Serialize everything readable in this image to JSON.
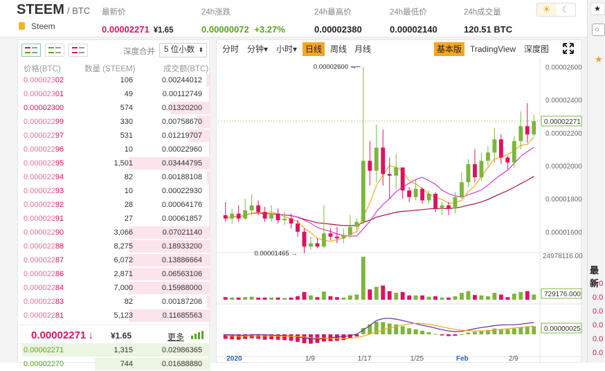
{
  "header": {
    "symbol": "STEEM",
    "pair_suffix": "/ BTC",
    "asset_name": "Steem",
    "last_price_label": "最新价",
    "last_price": "0.00002271",
    "last_price_fiat": "¥1.65",
    "change_label": "24h涨跌",
    "change_value": "0.00000072",
    "change_pct": "+3.27%",
    "high_label": "24h最高价",
    "high_value": "0.00002380",
    "low_label": "24h最低价",
    "low_value": "0.00002140",
    "volume_label": "24h成交量",
    "volume_value": "120.51 BTC",
    "theme_light_icon": "☀",
    "theme_dark_icon": "☾"
  },
  "orderbook": {
    "depth_label": "深度合并",
    "depth_select": "5 位小数",
    "columns": {
      "price": "价格(BTC)",
      "qty": "数量 (STEEM)",
      "total": "成交额(BTC)"
    },
    "asks": [
      {
        "p_main": "0.000023",
        "p_tail": "02",
        "qty": "106",
        "total": "0.00244012",
        "depth": 0.05
      },
      {
        "p_main": "0.000023",
        "p_tail": "01",
        "qty": "49",
        "total": "0.00112749",
        "depth": 0.02
      },
      {
        "p_main": "0.00002300",
        "p_tail": "",
        "qty": "574",
        "total": "0.01320200",
        "depth": 0.48
      },
      {
        "p_main": "0.000022",
        "p_tail": "99",
        "qty": "330",
        "total": "0.00758670",
        "depth": 0.16
      },
      {
        "p_main": "0.000022",
        "p_tail": "97",
        "qty": "531",
        "total": "0.01219707",
        "depth": 0.26
      },
      {
        "p_main": "0.000022",
        "p_tail": "96",
        "qty": "10",
        "total": "0.00022960",
        "depth": 0.01
      },
      {
        "p_main": "0.000022",
        "p_tail": "95",
        "qty": "1,501",
        "total": "0.03444795",
        "depth": 0.98
      },
      {
        "p_main": "0.000022",
        "p_tail": "94",
        "qty": "82",
        "total": "0.00188108",
        "depth": 0.04
      },
      {
        "p_main": "0.000022",
        "p_tail": "93",
        "qty": "10",
        "total": "0.00022930",
        "depth": 0.01
      },
      {
        "p_main": "0.000022",
        "p_tail": "92",
        "qty": "28",
        "total": "0.00064176",
        "depth": 0.02
      },
      {
        "p_main": "0.000022",
        "p_tail": "91",
        "qty": "27",
        "total": "0.00061857",
        "depth": 0.02
      },
      {
        "p_main": "0.000022",
        "p_tail": "90",
        "qty": "3,066",
        "total": "0.07021140",
        "depth": 0.98
      },
      {
        "p_main": "0.000022",
        "p_tail": "88",
        "qty": "8,275",
        "total": "0.18933200",
        "depth": 0.98
      },
      {
        "p_main": "0.000022",
        "p_tail": "87",
        "qty": "6,072",
        "total": "0.13886664",
        "depth": 0.98
      },
      {
        "p_main": "0.000022",
        "p_tail": "86",
        "qty": "2,871",
        "total": "0.06563106",
        "depth": 0.98
      },
      {
        "p_main": "0.000022",
        "p_tail": "84",
        "qty": "7,000",
        "total": "0.15988000",
        "depth": 0.98
      },
      {
        "p_main": "0.000022",
        "p_tail": "83",
        "qty": "82",
        "total": "0.00187206",
        "depth": 0.04
      },
      {
        "p_main": "0.000022",
        "p_tail": "81",
        "qty": "5,123",
        "total": "0.11685563",
        "depth": 0.98
      }
    ],
    "last_price": "0.00002271",
    "last_arrow": "↓",
    "last_fiat": "¥1.65",
    "more_label": "更多",
    "bids": [
      {
        "price": "0.00002271",
        "qty": "1,315",
        "total": "0.02986365",
        "depth": 0.98
      },
      {
        "price": "0.00002270",
        "qty": "744",
        "total": "0.01688880",
        "depth": 0.6
      }
    ]
  },
  "chart_toolbar": {
    "items": [
      "分时",
      "分钟",
      "小时",
      "日线",
      "周线",
      "月线"
    ],
    "dropdown_suffix": "▾",
    "active": "日线",
    "modes": [
      "基本版",
      "TradingView",
      "深度图"
    ],
    "active_mode": "基本版"
  },
  "chart_data": {
    "type": "candlestick",
    "price_axis": [
      "0.00002600",
      "0.00002400",
      "0.00002200",
      "0.00002000",
      "0.00001800",
      "0.00001600"
    ],
    "price_range": [
      1.49e-05,
      2.64e-05
    ],
    "current_price_tag": "0.00002271",
    "max_marker": "0.00002600",
    "min_marker": "0.00001465",
    "volume_axis_top": "24978116.00",
    "volume_tag": "729176.000",
    "macd_tag": "0.00000025",
    "x_labels": [
      "2020",
      "1/9",
      "1/17",
      "1/25",
      "Feb",
      "2/9"
    ],
    "colors": {
      "up": "#7cb63b",
      "down": "#e0105f",
      "ma_fast": "#f2a81d",
      "ma_mid": "#d23bd3",
      "ma_slow": "#a8102e"
    },
    "candles": [
      [
        1.7e-05,
        1.68e-05,
        1.78e-05,
        1.66e-05
      ],
      [
        1.68e-05,
        1.71e-05,
        1.74e-05,
        1.65e-05
      ],
      [
        1.71e-05,
        1.68e-05,
        1.76e-05,
        1.66e-05
      ],
      [
        1.68e-05,
        1.73e-05,
        1.8e-05,
        1.67e-05
      ],
      [
        1.73e-05,
        1.76e-05,
        1.83e-05,
        1.7e-05
      ],
      [
        1.76e-05,
        1.72e-05,
        1.79e-05,
        1.7e-05
      ],
      [
        1.72e-05,
        1.68e-05,
        1.75e-05,
        1.66e-05
      ],
      [
        1.68e-05,
        1.71e-05,
        1.76e-05,
        1.66e-05
      ],
      [
        1.71e-05,
        1.67e-05,
        1.74e-05,
        1.65e-05
      ],
      [
        1.67e-05,
        1.68e-05,
        1.72e-05,
        1.64e-05
      ],
      [
        1.68e-05,
        1.65e-05,
        1.71e-05,
        1.62e-05
      ],
      [
        1.65e-05,
        1.6e-05,
        1.67e-05,
        1.57e-05
      ],
      [
        1.6e-05,
        1.51e-05,
        1.62e-05,
        1.47e-05
      ],
      [
        1.51e-05,
        1.53e-05,
        1.57e-05,
        1.49e-05
      ],
      [
        1.53e-05,
        1.51e-05,
        1.56e-05,
        1.5e-05
      ],
      [
        1.51e-05,
        1.59e-05,
        1.76e-05,
        1.5e-05
      ],
      [
        1.59e-05,
        1.57e-05,
        1.62e-05,
        1.55e-05
      ],
      [
        1.57e-05,
        1.56e-05,
        1.63e-05,
        1.53e-05
      ],
      [
        1.56e-05,
        1.58e-05,
        1.62e-05,
        1.53e-05
      ],
      [
        1.58e-05,
        1.63e-05,
        1.7e-05,
        1.56e-05
      ],
      [
        1.63e-05,
        1.66e-05,
        1.68e-05,
        1.61e-05
      ],
      [
        1.66e-05,
        2.03e-05,
        2.6e-05,
        1.65e-05
      ],
      [
        2.03e-05,
        1.97e-05,
        2.15e-05,
        1.88e-05
      ],
      [
        1.97e-05,
        2.11e-05,
        2.25e-05,
        1.9e-05
      ],
      [
        2.11e-05,
        1.95e-05,
        2.22e-05,
        1.88e-05
      ],
      [
        1.95e-05,
        1.94e-05,
        2.05e-05,
        1.8e-05
      ],
      [
        1.94e-05,
        1.99e-05,
        2.07e-05,
        1.86e-05
      ],
      [
        1.99e-05,
        1.85e-05,
        1.97e-05,
        1.8e-05
      ],
      [
        1.85e-05,
        1.81e-05,
        1.87e-05,
        1.78e-05
      ],
      [
        1.81e-05,
        1.86e-05,
        1.92e-05,
        1.79e-05
      ],
      [
        1.86e-05,
        1.79e-05,
        1.87e-05,
        1.77e-05
      ],
      [
        1.79e-05,
        1.83e-05,
        1.85e-05,
        1.77e-05
      ],
      [
        1.83e-05,
        1.74e-05,
        1.84e-05,
        1.72e-05
      ],
      [
        1.74e-05,
        1.76e-05,
        1.78e-05,
        1.7e-05
      ],
      [
        1.76e-05,
        1.74e-05,
        1.78e-05,
        1.7e-05
      ],
      [
        1.74e-05,
        1.81e-05,
        1.84e-05,
        1.71e-05
      ],
      [
        1.81e-05,
        1.9e-05,
        1.96e-05,
        1.8e-05
      ],
      [
        1.9e-05,
        2.01e-05,
        2.04e-05,
        1.87e-05
      ],
      [
        2.01e-05,
        1.93e-05,
        2.1e-05,
        1.9e-05
      ],
      [
        1.93e-05,
        2.03e-05,
        2.08e-05,
        1.91e-05
      ],
      [
        2.03e-05,
        2.08e-05,
        2.12e-05,
        2e-05
      ],
      [
        2.08e-05,
        2.16e-05,
        2.23e-05,
        2.02e-05
      ],
      [
        2.16e-05,
        2.05e-05,
        2.19e-05,
        2.01e-05
      ],
      [
        2.05e-05,
        2.02e-05,
        2.06e-05,
        1.98e-05
      ],
      [
        2.02e-05,
        2.15e-05,
        2.18e-05,
        1.99e-05
      ],
      [
        2.15e-05,
        2.24e-05,
        2.33e-05,
        2.1e-05
      ],
      [
        2.24e-05,
        2.19e-05,
        2.38e-05,
        2.14e-05
      ],
      [
        2.19e-05,
        2.27e-05,
        2.31e-05,
        2.18e-05
      ]
    ],
    "volumes": [
      0.06,
      0.05,
      0.05,
      0.06,
      0.07,
      0.05,
      0.05,
      0.05,
      0.05,
      0.04,
      0.05,
      0.08,
      0.18,
      0.1,
      0.06,
      0.19,
      0.08,
      0.06,
      0.05,
      0.1,
      0.12,
      1.0,
      0.24,
      0.3,
      0.33,
      0.2,
      0.16,
      0.18,
      0.1,
      0.1,
      0.1,
      0.07,
      0.08,
      0.05,
      0.05,
      0.08,
      0.16,
      0.2,
      0.11,
      0.1,
      0.08,
      0.16,
      0.12,
      0.06,
      0.14,
      0.18,
      0.2,
      0.12
    ],
    "macd": [
      -0.25,
      -0.28,
      -0.3,
      -0.26,
      -0.22,
      -0.25,
      -0.3,
      -0.28,
      -0.3,
      -0.32,
      -0.36,
      -0.42,
      -0.5,
      -0.52,
      -0.48,
      -0.4,
      -0.38,
      -0.36,
      -0.32,
      -0.22,
      -0.12,
      0.35,
      0.55,
      0.7,
      0.68,
      0.6,
      0.55,
      0.45,
      0.34,
      0.28,
      0.2,
      0.12,
      0.02,
      -0.06,
      -0.1,
      -0.08,
      0.0,
      0.1,
      0.14,
      0.2,
      0.24,
      0.32,
      0.3,
      0.28,
      0.32,
      0.4,
      0.42,
      0.44
    ]
  },
  "right_panel": {
    "new_label": "最新",
    "values": [
      "0.0",
      "0.0",
      "0.0",
      "0.0",
      "0.0",
      "0.0"
    ]
  }
}
